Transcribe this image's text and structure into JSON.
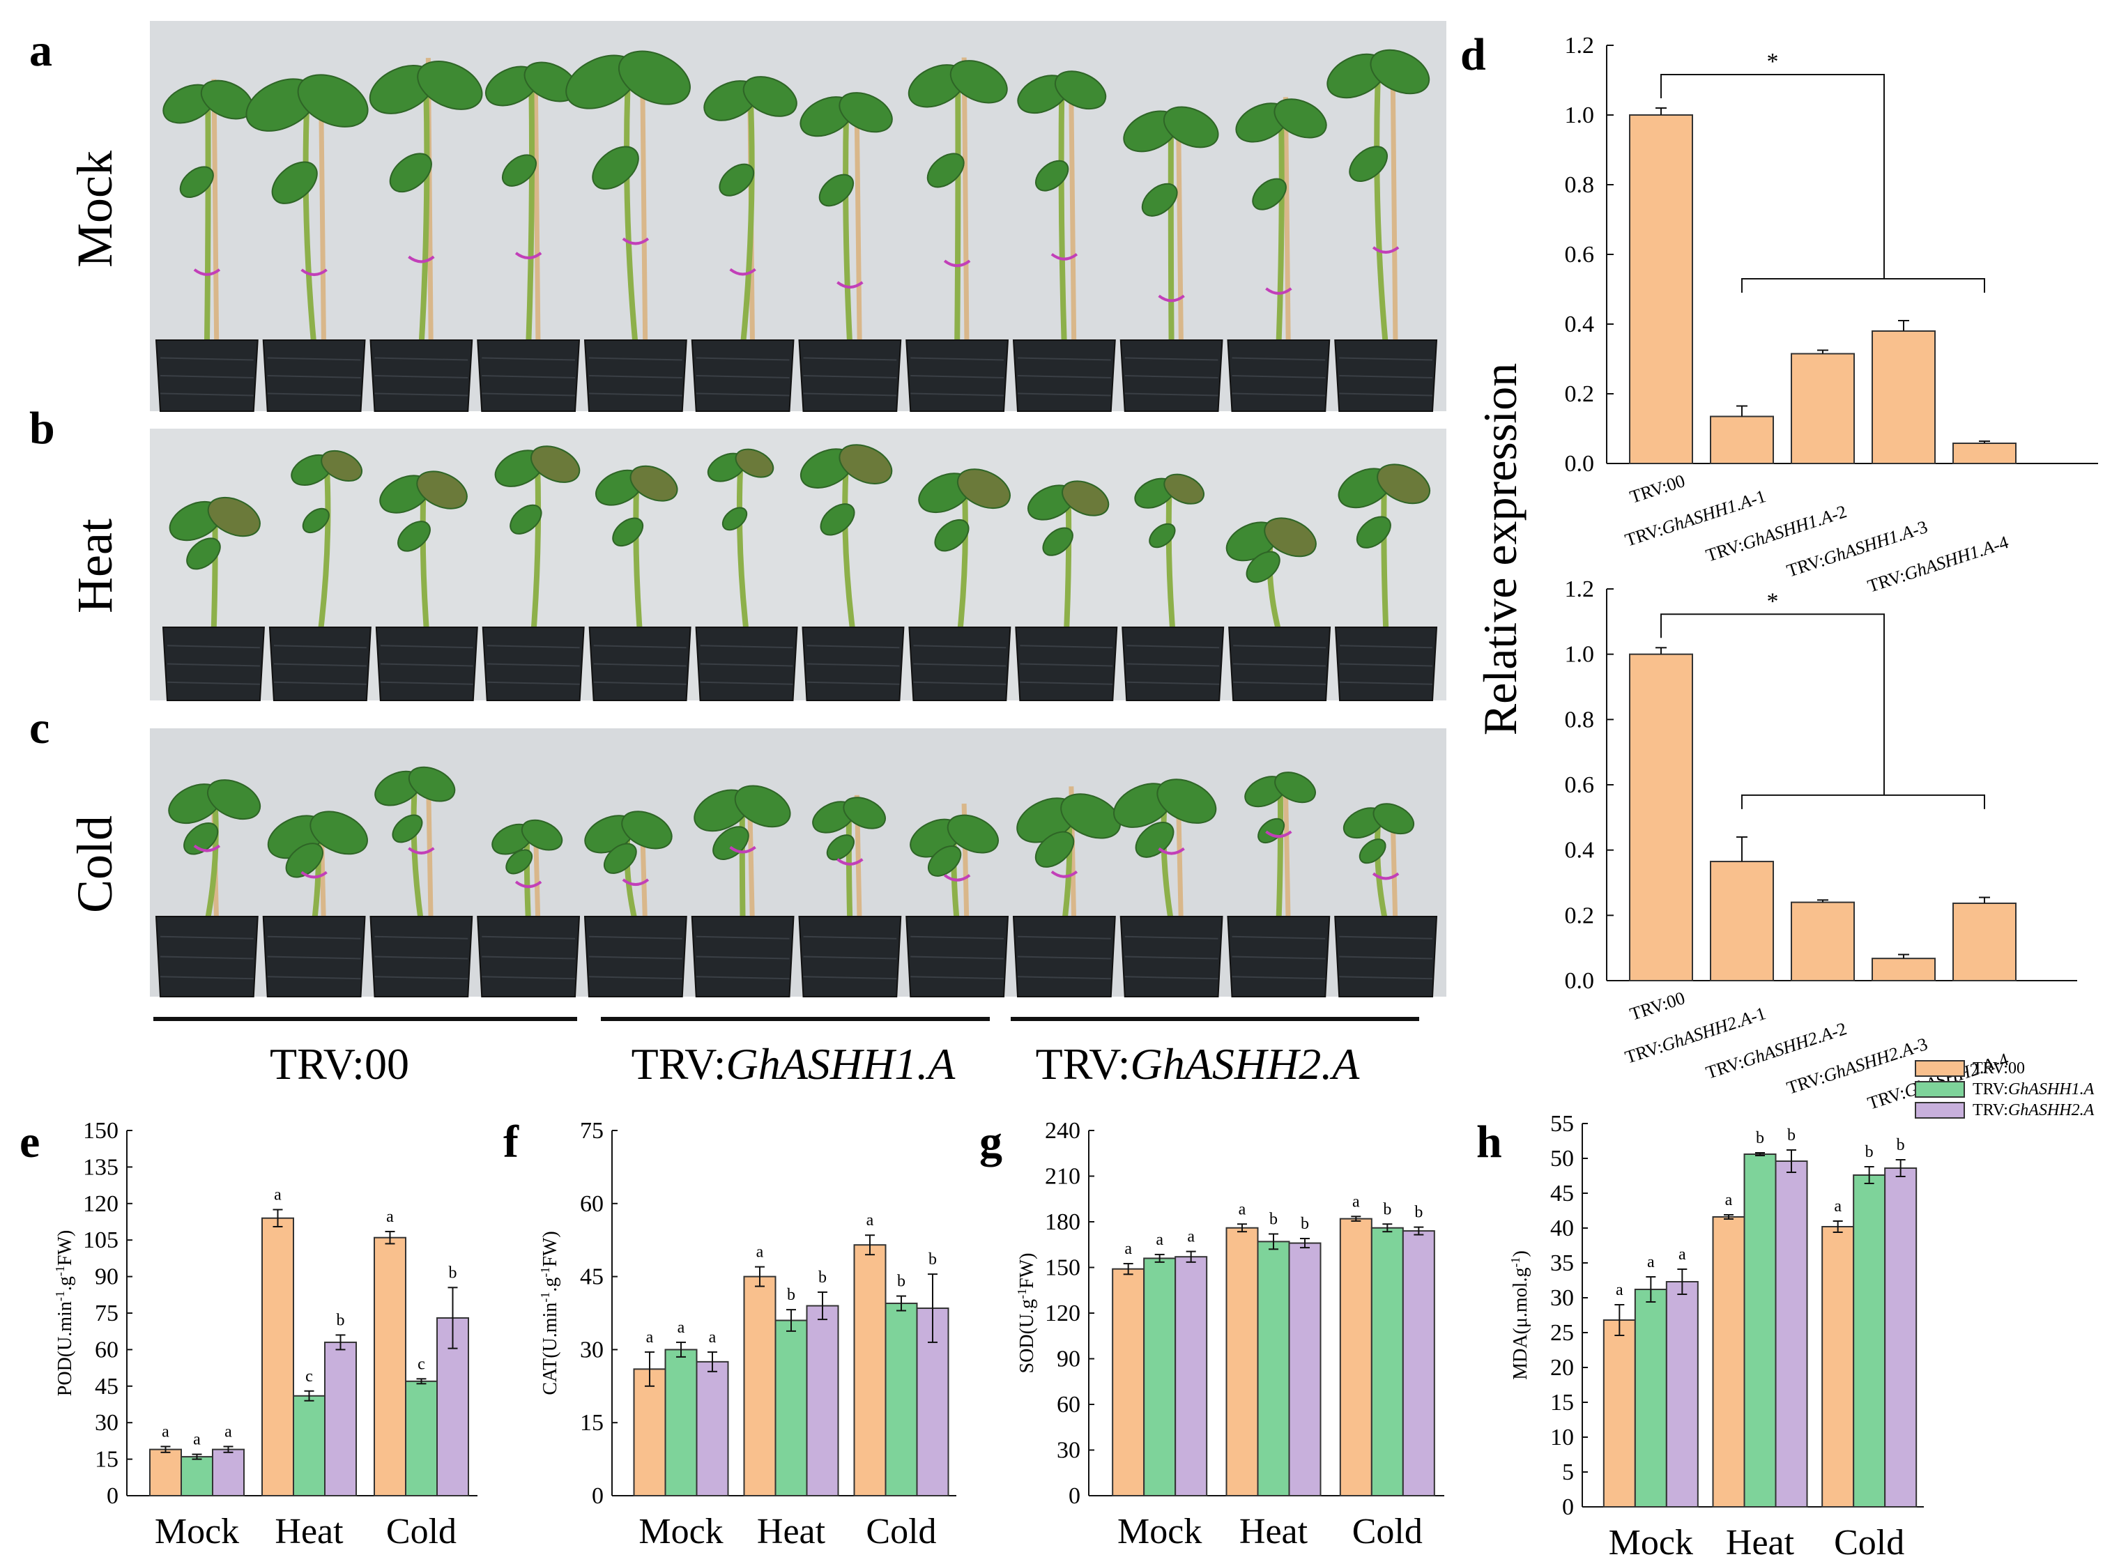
{
  "panels": {
    "a": {
      "letter": "a",
      "condition": "Mock"
    },
    "b": {
      "letter": "b",
      "condition": "Heat"
    },
    "c": {
      "letter": "c",
      "condition": "Cold"
    }
  },
  "photo_groups": [
    {
      "prefix": "TRV:00",
      "gene": ""
    },
    {
      "prefix": "TRV:",
      "gene": "GhASHH1.A"
    },
    {
      "prefix": "TRV:",
      "gene": "GhASHH2.A"
    }
  ],
  "colors": {
    "trv00": "#F9C08D",
    "ashh1": "#7ED39A",
    "ashh2": "#C8B0DC",
    "stroke": "#333333",
    "photo_bg": "#D9DCDF",
    "pot": "#23272B",
    "leaf": "#3E8A33",
    "stem": "#8DB04A"
  },
  "legend": {
    "items": [
      {
        "prefix": "TRV:",
        "name": "00",
        "italic": false
      },
      {
        "prefix": "TRV:",
        "name": "GhASHH1.A",
        "italic": true
      },
      {
        "prefix": "TRV:",
        "name": "GhASHH2.A",
        "italic": true
      }
    ]
  },
  "chart_data": [
    {
      "panel": "d",
      "id": "d-top",
      "type": "bar",
      "ylabel": "Relative expression",
      "ylim": [
        0,
        1.2
      ],
      "ytick_step": 0.2,
      "tick_decimals": 1,
      "categories": [
        {
          "prefix": "TRV:",
          "name": "00",
          "italic": false
        },
        {
          "prefix": "TRV:",
          "name": "GhASHH1.A",
          "suffix": "-1",
          "italic": true
        },
        {
          "prefix": "TRV:",
          "name": "GhASHH1.A",
          "suffix": "-2",
          "italic": true
        },
        {
          "prefix": "TRV:",
          "name": "GhASHH1.A",
          "suffix": "-3",
          "italic": true
        },
        {
          "prefix": "TRV:",
          "name": "GhASHH1.A",
          "suffix": "-4",
          "italic": true
        }
      ],
      "values": [
        1.0,
        0.135,
        0.315,
        0.38,
        0.058
      ],
      "errors": [
        0.02,
        0.03,
        0.01,
        0.03,
        0.006
      ],
      "significance": "*"
    },
    {
      "panel": "d",
      "id": "d-bottom",
      "type": "bar",
      "ylabel": "Relative expression",
      "ylim": [
        0,
        1.2
      ],
      "ytick_step": 0.2,
      "tick_decimals": 1,
      "categories": [
        {
          "prefix": "TRV:",
          "name": "00",
          "italic": false
        },
        {
          "prefix": "TRV:",
          "name": "GhASHH2.A",
          "suffix": "-1",
          "italic": true
        },
        {
          "prefix": "TRV:",
          "name": "GhASHH2.A",
          "suffix": "-2",
          "italic": true
        },
        {
          "prefix": "TRV:",
          "name": "GhASHH2.A",
          "suffix": "-3",
          "italic": true
        },
        {
          "prefix": "TRV:",
          "name": "GhASHH2.A",
          "suffix": "-4",
          "italic": true
        }
      ],
      "values": [
        1.0,
        0.365,
        0.24,
        0.068,
        0.237
      ],
      "errors": [
        0.02,
        0.075,
        0.007,
        0.012,
        0.018
      ],
      "significance": "*"
    },
    {
      "panel": "e",
      "type": "bar",
      "ylabel": "POD(U.min-1.g-1FW)",
      "ylabel_parts": [
        [
          "POD(U.min",
          ""
        ],
        [
          "-1",
          "sup"
        ],
        [
          ".g",
          ""
        ],
        [
          "-1",
          "sup"
        ],
        [
          "FW)",
          ""
        ]
      ],
      "ylim": [
        0,
        150
      ],
      "ytick_step": 15,
      "tick_decimals": 0,
      "categories": [
        "Mock",
        "Heat",
        "Cold"
      ],
      "series": [
        {
          "name": "TRV:00",
          "values": [
            19,
            114,
            106
          ],
          "errors": [
            1.2,
            3.5,
            2.5
          ],
          "letters": [
            "a",
            "a",
            "a"
          ]
        },
        {
          "name": "TRV:GhASHH1.A",
          "values": [
            16,
            41,
            47
          ],
          "errors": [
            1.0,
            2.0,
            1.0
          ],
          "letters": [
            "a",
            "c",
            "c"
          ]
        },
        {
          "name": "TRV:GhASHH2.A",
          "values": [
            19,
            63,
            73
          ],
          "errors": [
            1.2,
            3.0,
            12.5
          ],
          "letters": [
            "a",
            "b",
            "b"
          ]
        }
      ]
    },
    {
      "panel": "f",
      "type": "bar",
      "ylabel": "CAT(U.min-1.g-1FW)",
      "ylabel_parts": [
        [
          "CAT(U.min",
          ""
        ],
        [
          "-1",
          "sup"
        ],
        [
          ".g",
          ""
        ],
        [
          "-1",
          "sup"
        ],
        [
          "FW)",
          ""
        ]
      ],
      "ylim": [
        0,
        75
      ],
      "ytick_step": 15,
      "tick_decimals": 0,
      "categories": [
        "Mock",
        "Heat",
        "Cold"
      ],
      "series": [
        {
          "name": "TRV:00",
          "values": [
            26,
            45,
            51.5
          ],
          "errors": [
            3.5,
            2.0,
            2.0
          ],
          "letters": [
            "a",
            "a",
            "a"
          ]
        },
        {
          "name": "TRV:GhASHH1.A",
          "values": [
            30,
            36,
            39.5
          ],
          "errors": [
            1.5,
            2.2,
            1.5
          ],
          "letters": [
            "a",
            "b",
            "b"
          ]
        },
        {
          "name": "TRV:GhASHH2.A",
          "values": [
            27.5,
            39,
            38.5
          ],
          "errors": [
            2.0,
            2.8,
            7.0
          ],
          "letters": [
            "a",
            "b",
            "b"
          ]
        }
      ]
    },
    {
      "panel": "g",
      "type": "bar",
      "ylabel": "SOD(U.g-1FW)",
      "ylabel_parts": [
        [
          "SOD(U.g",
          ""
        ],
        [
          "-1",
          "sup"
        ],
        [
          "FW)",
          ""
        ]
      ],
      "ylim": [
        0,
        240
      ],
      "ytick_step": 30,
      "tick_decimals": 0,
      "categories": [
        "Mock",
        "Heat",
        "Cold"
      ],
      "series": [
        {
          "name": "TRV:00",
          "values": [
            149,
            176,
            182
          ],
          "errors": [
            3.5,
            2.5,
            1.5
          ],
          "letters": [
            "a",
            "a",
            "a"
          ]
        },
        {
          "name": "TRV:GhASHH1.A",
          "values": [
            156,
            167,
            176
          ],
          "errors": [
            2.5,
            5.0,
            2.5
          ],
          "letters": [
            "a",
            "b",
            "b"
          ]
        },
        {
          "name": "TRV:GhASHH2.A",
          "values": [
            157,
            166,
            174
          ],
          "errors": [
            3.5,
            3.0,
            2.5
          ],
          "letters": [
            "a",
            "b",
            "b"
          ]
        }
      ]
    },
    {
      "panel": "h",
      "type": "bar",
      "ylabel": "MDA(μ.mol.g-1)",
      "ylabel_parts": [
        [
          "MDA(μ.mol.g",
          ""
        ],
        [
          "-1",
          "sup"
        ],
        [
          ")",
          ""
        ]
      ],
      "ylim": [
        0,
        55
      ],
      "ytick_step": 5,
      "tick_decimals": 0,
      "categories": [
        "Mock",
        "Heat",
        "Cold"
      ],
      "series": [
        {
          "name": "TRV:00",
          "values": [
            26.8,
            41.6,
            40.2
          ],
          "errors": [
            2.2,
            0.3,
            0.8
          ],
          "letters": [
            "a",
            "a",
            "a"
          ]
        },
        {
          "name": "TRV:GhASHH1.A",
          "values": [
            31.2,
            50.6,
            47.6
          ],
          "errors": [
            1.8,
            0.2,
            1.2
          ],
          "letters": [
            "a",
            "b",
            "b"
          ]
        },
        {
          "name": "TRV:GhASHH2.A",
          "values": [
            32.3,
            49.6,
            48.6
          ],
          "errors": [
            1.8,
            1.6,
            1.2
          ],
          "letters": [
            "a",
            "b",
            "b"
          ]
        }
      ]
    }
  ]
}
